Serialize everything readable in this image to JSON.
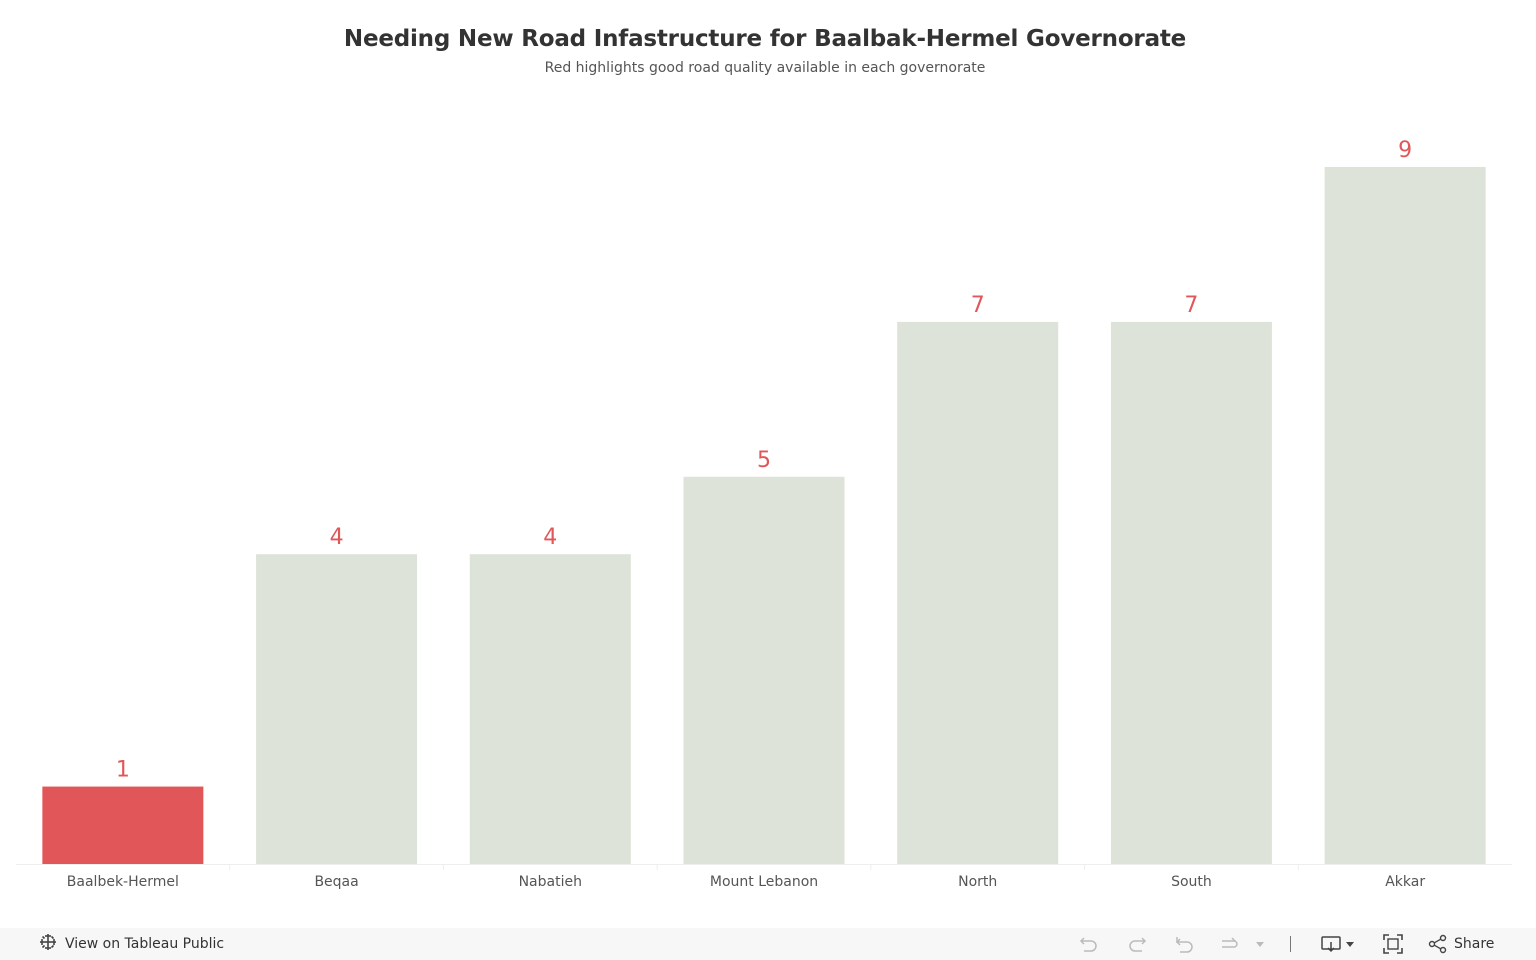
{
  "chart_data": {
    "type": "bar",
    "title": "Needing New Road Infastructure for Baalbak-Hermel Governorate",
    "subtitle": "Red  highlights good road quality available in each governorate",
    "categories": [
      "Baalbek-Hermel",
      "Beqaa",
      "Nabatieh",
      "Mount Lebanon",
      "North",
      "South",
      "Akkar"
    ],
    "values": [
      1,
      4,
      4,
      5,
      7,
      7,
      9
    ],
    "highlighted": [
      "Baalbek-Hermel"
    ],
    "ylim": [
      0,
      9
    ],
    "xlabel": "",
    "ylabel": "",
    "grid": false,
    "colors": {
      "highlight": "#e15759",
      "default": "#dde3d8",
      "label": "#e15759",
      "tick": "#555555"
    }
  },
  "toolbar": {
    "view_label": "View on Tableau Public",
    "share_label": "Share",
    "icons": [
      "tableau-logo-icon",
      "undo-icon",
      "redo-icon",
      "revert-icon",
      "refresh-icon",
      "dropdown-caret-icon",
      "download-icon",
      "fullscreen-icon",
      "share-icon"
    ]
  }
}
